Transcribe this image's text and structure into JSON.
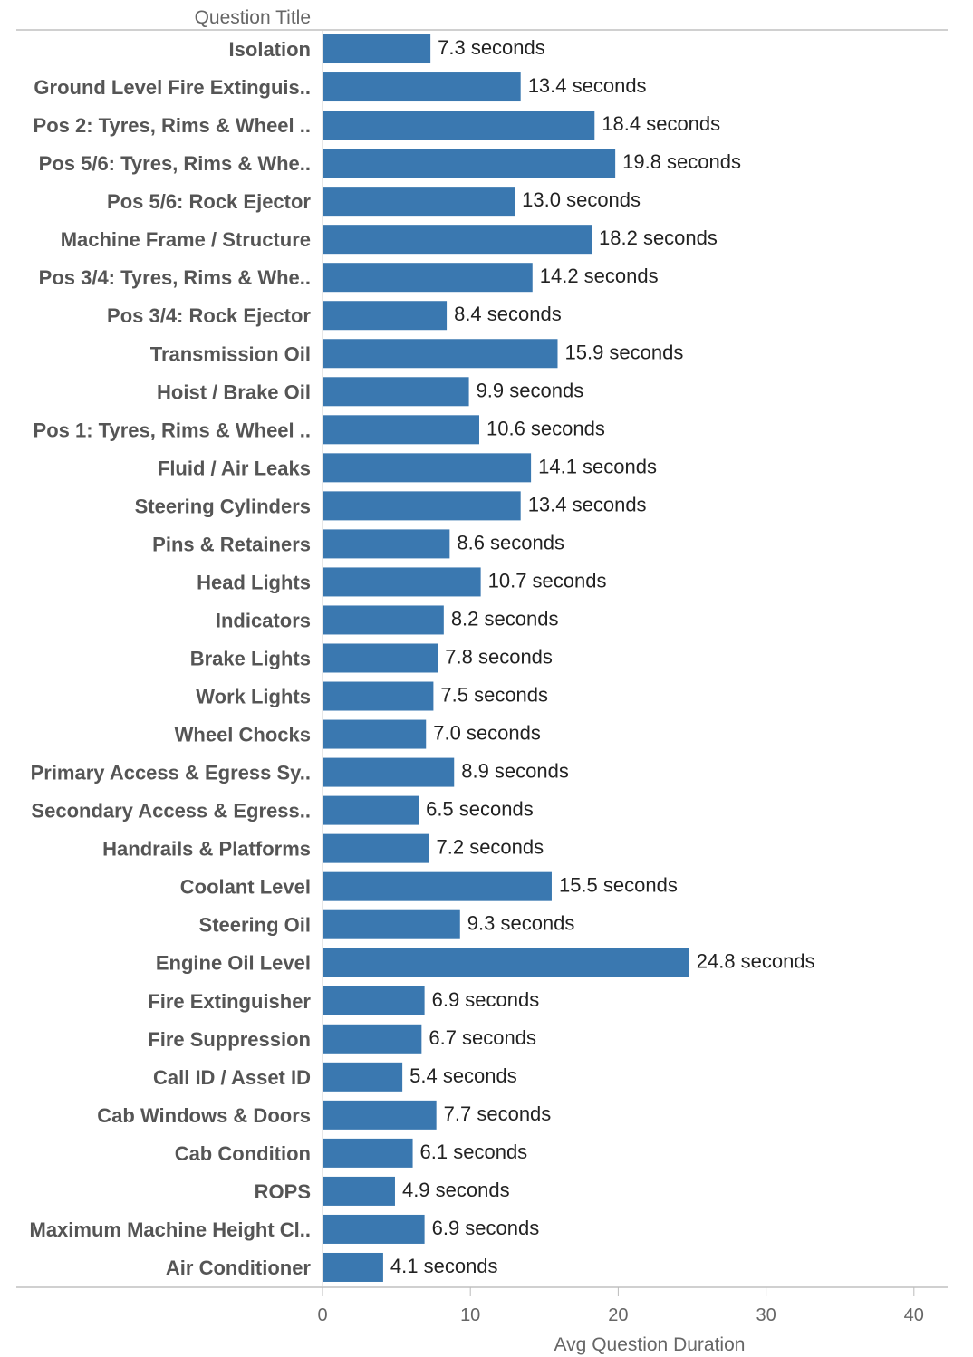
{
  "chart_data": {
    "type": "bar",
    "orientation": "horizontal",
    "row_header": "Question Title",
    "xlabel": "Avg Question Duration",
    "xlim": [
      0,
      43
    ],
    "xticks": [
      0,
      10,
      20,
      30,
      40
    ],
    "value_suffix": " seconds",
    "bar_color": "#3a78b0",
    "categories": [
      "Isolation",
      "Ground Level Fire Extinguis..",
      "Pos 2: Tyres, Rims & Wheel ..",
      "Pos 5/6: Tyres, Rims & Whe..",
      "Pos 5/6: Rock Ejector",
      "Machine Frame / Structure",
      "Pos 3/4: Tyres, Rims & Whe..",
      "Pos 3/4: Rock Ejector",
      "Transmission Oil",
      "Hoist / Brake Oil",
      "Pos 1: Tyres, Rims & Wheel ..",
      "Fluid / Air Leaks",
      "Steering Cylinders",
      "Pins & Retainers",
      "Head Lights",
      "Indicators",
      "Brake Lights",
      "Work Lights",
      "Wheel Chocks",
      "Primary Access & Egress Sy..",
      "Secondary Access & Egress..",
      "Handrails & Platforms",
      "Coolant Level",
      "Steering Oil",
      "Engine Oil Level",
      "Fire Extinguisher",
      "Fire Suppression",
      "Call ID / Asset ID",
      "Cab Windows & Doors",
      "Cab Condition",
      "ROPS",
      "Maximum Machine Height Cl..",
      "Air Conditioner"
    ],
    "values": [
      7.3,
      13.4,
      18.4,
      19.8,
      13.0,
      18.2,
      14.2,
      8.4,
      15.9,
      9.9,
      10.6,
      14.1,
      13.4,
      8.6,
      10.7,
      8.2,
      7.8,
      7.5,
      7.0,
      8.9,
      6.5,
      7.2,
      15.5,
      9.3,
      24.8,
      6.9,
      6.7,
      5.4,
      7.7,
      6.1,
      4.9,
      6.9,
      4.1
    ],
    "value_labels": [
      "7.3 seconds",
      "13.4 seconds",
      "18.4 seconds",
      "19.8 seconds",
      "13.0 seconds",
      "18.2 seconds",
      "14.2 seconds",
      "8.4 seconds",
      "15.9 seconds",
      "9.9 seconds",
      "10.6 seconds",
      "14.1 seconds",
      "13.4 seconds",
      "8.6 seconds",
      "10.7 seconds",
      "8.2 seconds",
      "7.8 seconds",
      "7.5 seconds",
      "7.0 seconds",
      "8.9 seconds",
      "6.5 seconds",
      "7.2 seconds",
      "15.5 seconds",
      "9.3 seconds",
      "24.8 seconds",
      "6.9 seconds",
      "6.7 seconds",
      "5.4 seconds",
      "7.7 seconds",
      "6.1 seconds",
      "4.9 seconds",
      "6.9 seconds",
      "4.1 seconds"
    ],
    "grid": false
  }
}
